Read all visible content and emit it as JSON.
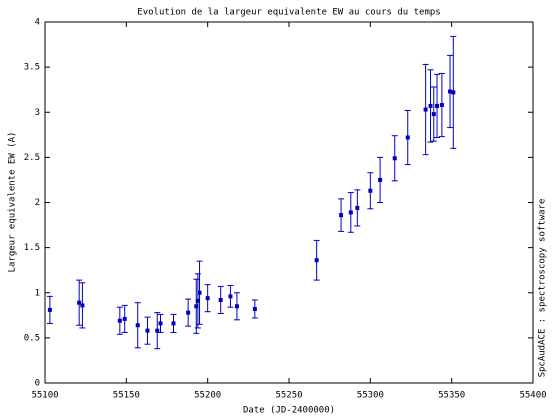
{
  "chart_data": {
    "type": "scatter",
    "title": "Evolution de la largeur equivalente EW au cours du temps",
    "x_label": "Date (JD-2400000)",
    "y_label": "Largeur equivalente EW (A)",
    "side_note": "SpcAudACE : spectroscopy software",
    "xlim": [
      55100,
      55400
    ],
    "xticks": [
      55100,
      55150,
      55200,
      55250,
      55300,
      55350,
      55400
    ],
    "ylim": [
      0,
      4
    ],
    "yticks": [
      0,
      0.5,
      1,
      1.5,
      2,
      2.5,
      3,
      3.5,
      4
    ],
    "grid": false,
    "series": [
      {
        "name": "EW",
        "color": "#0000c0",
        "x": [
          55103,
          55121,
          55123,
          55146,
          55149,
          55157,
          55163,
          55169,
          55171,
          55179,
          55188,
          55193,
          55194,
          55195,
          55200,
          55208,
          55214,
          55218,
          55229,
          55267,
          55282,
          55288,
          55292,
          55300,
          55306,
          55315,
          55323,
          55334,
          55337,
          55339,
          55341,
          55344,
          55349,
          55351
        ],
        "values": [
          0.81,
          0.89,
          0.86,
          0.69,
          0.71,
          0.64,
          0.58,
          0.58,
          0.66,
          0.66,
          0.78,
          0.85,
          0.91,
          1.0,
          0.94,
          0.92,
          0.96,
          0.85,
          0.82,
          1.36,
          1.86,
          1.89,
          1.94,
          2.13,
          2.25,
          2.49,
          2.72,
          3.03,
          3.07,
          2.98,
          3.07,
          3.08,
          3.23,
          3.22
        ],
        "errors": [
          0.15,
          0.25,
          0.25,
          0.15,
          0.15,
          0.25,
          0.15,
          0.2,
          0.1,
          0.1,
          0.15,
          0.3,
          0.3,
          0.35,
          0.15,
          0.15,
          0.12,
          0.15,
          0.1,
          0.22,
          0.18,
          0.22,
          0.2,
          0.2,
          0.25,
          0.25,
          0.3,
          0.5,
          0.4,
          0.3,
          0.35,
          0.35,
          0.4,
          0.62
        ]
      }
    ]
  }
}
